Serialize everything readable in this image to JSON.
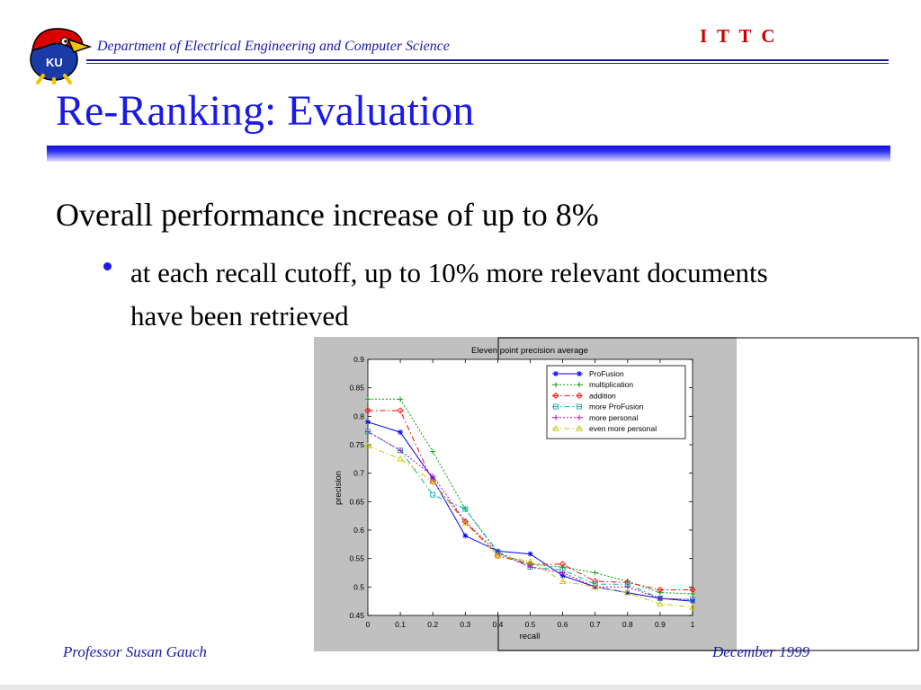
{
  "header": {
    "logo_text": "KU",
    "department": "Department of Electrical Engineering and Computer Science",
    "org": "I T T C"
  },
  "slide": {
    "title": "Re-Ranking: Evaluation",
    "headline": "Overall performance increase of up to 8%",
    "bullet": "at each recall cutoff, up to 10% more relevant documents have been retrieved"
  },
  "footer": {
    "author": "Professor Susan Gauch",
    "date": "December 1999"
  },
  "colors": {
    "title": "#1a1ae6",
    "department": "#1a1aa6",
    "org": "#cc0000"
  },
  "chart_data": {
    "type": "line",
    "title": "Eleven point precision average",
    "xlabel": "recall",
    "ylabel": "precision",
    "x": [
      0,
      0.1,
      0.2,
      0.3,
      0.4,
      0.5,
      0.6,
      0.7,
      0.8,
      0.9,
      1
    ],
    "xlim": [
      0,
      1
    ],
    "ylim": [
      0.45,
      0.9
    ],
    "xticks": [
      "0",
      "0.1",
      "0.2",
      "0.3",
      "0.4",
      "0.5",
      "0.6",
      "0.7",
      "0.8",
      "0.9",
      "1"
    ],
    "yticks": [
      "0.45",
      "0.5",
      "0.55",
      "0.6",
      "0.65",
      "0.7",
      "0.75",
      "0.8",
      "0.85",
      "0.9"
    ],
    "legend_position": "top-right",
    "grid": false,
    "series": [
      {
        "name": "ProFusion",
        "color": "#0000ff",
        "dash": "solid",
        "marker": "star",
        "values": [
          0.79,
          0.772,
          0.69,
          0.59,
          0.563,
          0.558,
          0.52,
          0.5,
          0.49,
          0.48,
          0.475
        ]
      },
      {
        "name": "multiplication",
        "color": "#00a000",
        "dash": "dotted",
        "marker": "plus",
        "values": [
          0.83,
          0.83,
          0.738,
          0.637,
          0.56,
          0.54,
          0.535,
          0.525,
          0.51,
          0.49,
          0.488
        ]
      },
      {
        "name": "addition",
        "color": "#ff0000",
        "dash": "dashdot",
        "marker": "diamond",
        "values": [
          0.81,
          0.81,
          0.685,
          0.615,
          0.555,
          0.54,
          0.54,
          0.51,
          0.508,
          0.495,
          0.495
        ]
      },
      {
        "name": "more ProFusion",
        "color": "#00b0b0",
        "dash": "dashdot",
        "marker": "square",
        "values": [
          0.773,
          0.74,
          0.662,
          0.637,
          0.562,
          0.535,
          0.53,
          0.505,
          0.505,
          0.48,
          0.478
        ]
      },
      {
        "name": "more personal",
        "color": "#c000c0",
        "dash": "dotted",
        "marker": "plus",
        "values": [
          0.773,
          0.74,
          0.695,
          0.615,
          0.56,
          0.535,
          0.525,
          0.5,
          0.5,
          0.48,
          0.478
        ]
      },
      {
        "name": "even more personal",
        "color": "#c8c800",
        "dash": "dashdot",
        "marker": "triangle",
        "values": [
          0.748,
          0.725,
          0.685,
          0.612,
          0.555,
          0.545,
          0.51,
          0.5,
          0.49,
          0.47,
          0.465
        ]
      }
    ]
  }
}
